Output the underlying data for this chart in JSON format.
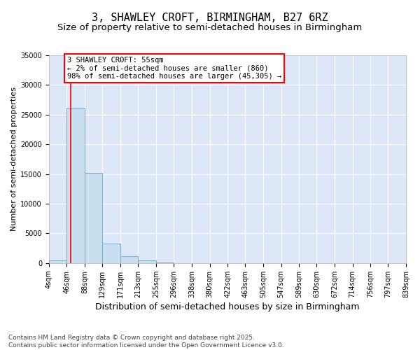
{
  "title": "3, SHAWLEY CROFT, BIRMINGHAM, B27 6RZ",
  "subtitle": "Size of property relative to semi-detached houses in Birmingham",
  "xlabel": "Distribution of semi-detached houses by size in Birmingham",
  "ylabel": "Number of semi-detached properties",
  "bin_edges": [
    4,
    46,
    88,
    129,
    171,
    213,
    255,
    296,
    338,
    380,
    422,
    463,
    505,
    547,
    589,
    630,
    672,
    714,
    756,
    797,
    839
  ],
  "bar_heights": [
    500,
    26100,
    15200,
    3300,
    1200,
    500,
    50,
    20,
    10,
    5,
    5,
    5,
    5,
    5,
    5,
    5,
    5,
    5,
    5,
    5
  ],
  "bar_color": "#c8dff0",
  "bar_edge_color": "#7aaac8",
  "property_size": 55,
  "red_line_color": "red",
  "annotation_text": "3 SHAWLEY CROFT: 55sqm\n← 2% of semi-detached houses are smaller (860)\n98% of semi-detached houses are larger (45,305) →",
  "annotation_box_color": "white",
  "annotation_border_color": "red",
  "ylim": [
    0,
    35000
  ],
  "yticks": [
    0,
    5000,
    10000,
    15000,
    20000,
    25000,
    30000,
    35000
  ],
  "background_color": "#dce8f8",
  "grid_color": "white",
  "footer_text": "Contains HM Land Registry data © Crown copyright and database right 2025.\nContains public sector information licensed under the Open Government Licence v3.0.",
  "title_fontsize": 11,
  "subtitle_fontsize": 9.5,
  "xlabel_fontsize": 9,
  "ylabel_fontsize": 8,
  "tick_fontsize": 7,
  "annotation_fontsize": 7.5,
  "footer_fontsize": 6.5
}
